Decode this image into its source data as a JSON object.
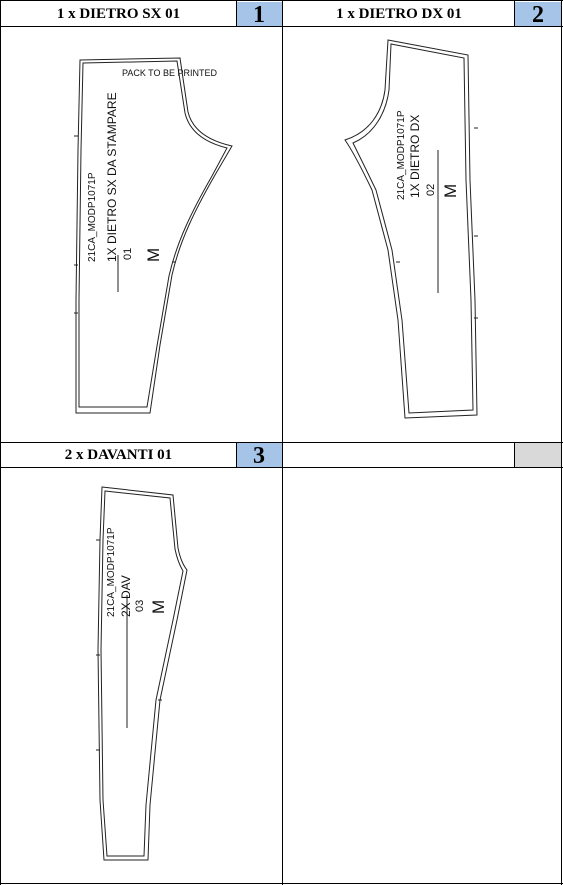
{
  "colors": {
    "header_number_bg": "#a6c4e8",
    "header_empty_bg": "#d9d9d9",
    "grid_line": "#000000",
    "pattern_line": "#222222"
  },
  "cells": [
    {
      "title": "1 x DIETRO SX 01",
      "number": "1",
      "piece": {
        "note": "PACK TO BE PRINTED",
        "code": "21CA_MODP1071P",
        "name": "1X DIETRO SX DA STAMPARE",
        "index": "01",
        "size": "M"
      }
    },
    {
      "title": "1 x DIETRO DX 01",
      "number": "2",
      "piece": {
        "code": "21CA_MODP1071P",
        "name": "1X DIETRO DX",
        "index": "02",
        "size": "M"
      }
    },
    {
      "title": "2 x DAVANTI 01",
      "number": "3",
      "piece": {
        "code": "21CA_MODP1071P",
        "name": "2X DAV",
        "index": "03",
        "size": "M"
      }
    },
    {
      "title": "",
      "number": ""
    }
  ]
}
